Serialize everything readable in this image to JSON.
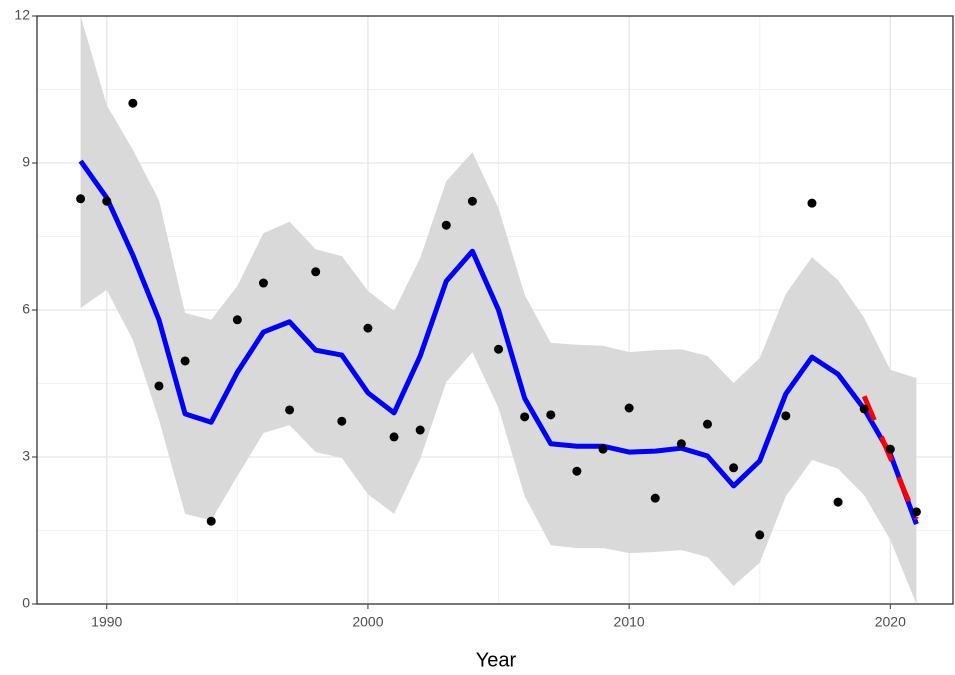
{
  "chart_data": {
    "type": "scatter",
    "xlabel": "Year",
    "x": [
      1989,
      1990,
      1991,
      1992,
      1993,
      1994,
      1995,
      1996,
      1997,
      1998,
      1999,
      2000,
      2001,
      2002,
      2003,
      2004,
      2005,
      2006,
      2007,
      2008,
      2009,
      2010,
      2011,
      2012,
      2013,
      2014,
      2015,
      2016,
      2017,
      2018,
      2019,
      2020,
      2021
    ],
    "points": {
      "color": "#000000",
      "values": [
        8.27,
        8.22,
        10.22,
        4.45,
        4.96,
        1.69,
        5.8,
        6.55,
        3.96,
        6.78,
        3.73,
        5.63,
        3.41,
        3.55,
        7.73,
        8.22,
        5.2,
        3.82,
        3.86,
        2.71,
        3.16,
        4.0,
        2.16,
        3.27,
        3.67,
        2.78,
        1.41,
        3.84,
        8.18,
        2.08,
        3.98,
        3.16,
        1.88
      ]
    },
    "fit": {
      "color": "#0000ff",
      "values": [
        9.04,
        8.29,
        7.12,
        5.8,
        3.88,
        3.71,
        4.73,
        5.55,
        5.76,
        5.18,
        5.08,
        4.31,
        3.9,
        5.06,
        6.59,
        7.2,
        6.0,
        4.2,
        3.27,
        3.22,
        3.22,
        3.1,
        3.12,
        3.18,
        3.02,
        2.41,
        2.92,
        4.29,
        5.04,
        4.69,
        3.98,
        3.06,
        1.63
      ]
    },
    "band": {
      "color": "#d9d9d9",
      "upper": [
        12.0,
        10.18,
        9.27,
        8.24,
        5.94,
        5.8,
        6.49,
        7.57,
        7.8,
        7.24,
        7.1,
        6.39,
        5.98,
        7.06,
        8.63,
        9.22,
        8.08,
        6.31,
        5.33,
        5.29,
        5.27,
        5.14,
        5.18,
        5.2,
        5.06,
        4.51,
        5.02,
        6.33,
        7.08,
        6.61,
        5.84,
        4.78,
        4.61
      ],
      "lower": [
        6.04,
        6.41,
        5.39,
        3.76,
        1.84,
        1.71,
        2.61,
        3.49,
        3.65,
        3.1,
        2.98,
        2.24,
        1.84,
        2.96,
        4.53,
        5.14,
        4.0,
        2.2,
        1.2,
        1.14,
        1.14,
        1.04,
        1.06,
        1.1,
        0.96,
        0.37,
        0.84,
        2.2,
        2.94,
        2.76,
        2.22,
        1.31,
        0.0
      ]
    },
    "forecast": {
      "color": "#ff0000",
      "dashed": true,
      "x": [
        2019,
        2021
      ],
      "values": [
        4.24,
        1.73
      ]
    },
    "xlim": [
      1987.33,
      2022.4
    ],
    "ylim": [
      0,
      12
    ],
    "xticks": [
      1990,
      2000,
      2010,
      2020
    ],
    "yticks": [
      0,
      3,
      6,
      9,
      12
    ],
    "xminorticks": [
      1995,
      2005,
      2015
    ],
    "yminorticks": [
      1.5,
      4.5,
      7.5,
      10.5
    ],
    "grid": true
  }
}
